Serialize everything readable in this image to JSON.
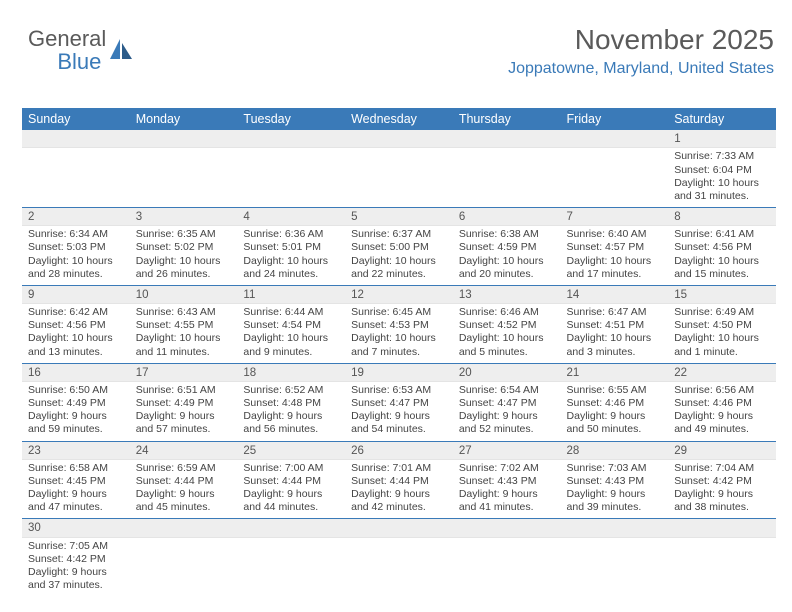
{
  "logo": {
    "word1": "General",
    "word2": "Blue"
  },
  "header": {
    "title": "November 2025",
    "location": "Joppatowne, Maryland, United States"
  },
  "colors": {
    "header_bg": "#3a7ab8",
    "header_text": "#ffffff",
    "daynum_bg": "#eeeeee",
    "row_border": "#3a7ab8",
    "title_color": "#5a5a5a",
    "location_color": "#3a7ab8"
  },
  "day_labels": [
    "Sunday",
    "Monday",
    "Tuesday",
    "Wednesday",
    "Thursday",
    "Friday",
    "Saturday"
  ],
  "weeks": [
    [
      null,
      null,
      null,
      null,
      null,
      null,
      {
        "n": "1",
        "sr": "7:33 AM",
        "ss": "6:04 PM",
        "dl": "10 hours and 31 minutes."
      }
    ],
    [
      {
        "n": "2",
        "sr": "6:34 AM",
        "ss": "5:03 PM",
        "dl": "10 hours and 28 minutes."
      },
      {
        "n": "3",
        "sr": "6:35 AM",
        "ss": "5:02 PM",
        "dl": "10 hours and 26 minutes."
      },
      {
        "n": "4",
        "sr": "6:36 AM",
        "ss": "5:01 PM",
        "dl": "10 hours and 24 minutes."
      },
      {
        "n": "5",
        "sr": "6:37 AM",
        "ss": "5:00 PM",
        "dl": "10 hours and 22 minutes."
      },
      {
        "n": "6",
        "sr": "6:38 AM",
        "ss": "4:59 PM",
        "dl": "10 hours and 20 minutes."
      },
      {
        "n": "7",
        "sr": "6:40 AM",
        "ss": "4:57 PM",
        "dl": "10 hours and 17 minutes."
      },
      {
        "n": "8",
        "sr": "6:41 AM",
        "ss": "4:56 PM",
        "dl": "10 hours and 15 minutes."
      }
    ],
    [
      {
        "n": "9",
        "sr": "6:42 AM",
        "ss": "4:56 PM",
        "dl": "10 hours and 13 minutes."
      },
      {
        "n": "10",
        "sr": "6:43 AM",
        "ss": "4:55 PM",
        "dl": "10 hours and 11 minutes."
      },
      {
        "n": "11",
        "sr": "6:44 AM",
        "ss": "4:54 PM",
        "dl": "10 hours and 9 minutes."
      },
      {
        "n": "12",
        "sr": "6:45 AM",
        "ss": "4:53 PM",
        "dl": "10 hours and 7 minutes."
      },
      {
        "n": "13",
        "sr": "6:46 AM",
        "ss": "4:52 PM",
        "dl": "10 hours and 5 minutes."
      },
      {
        "n": "14",
        "sr": "6:47 AM",
        "ss": "4:51 PM",
        "dl": "10 hours and 3 minutes."
      },
      {
        "n": "15",
        "sr": "6:49 AM",
        "ss": "4:50 PM",
        "dl": "10 hours and 1 minute."
      }
    ],
    [
      {
        "n": "16",
        "sr": "6:50 AM",
        "ss": "4:49 PM",
        "dl": "9 hours and 59 minutes."
      },
      {
        "n": "17",
        "sr": "6:51 AM",
        "ss": "4:49 PM",
        "dl": "9 hours and 57 minutes."
      },
      {
        "n": "18",
        "sr": "6:52 AM",
        "ss": "4:48 PM",
        "dl": "9 hours and 56 minutes."
      },
      {
        "n": "19",
        "sr": "6:53 AM",
        "ss": "4:47 PM",
        "dl": "9 hours and 54 minutes."
      },
      {
        "n": "20",
        "sr": "6:54 AM",
        "ss": "4:47 PM",
        "dl": "9 hours and 52 minutes."
      },
      {
        "n": "21",
        "sr": "6:55 AM",
        "ss": "4:46 PM",
        "dl": "9 hours and 50 minutes."
      },
      {
        "n": "22",
        "sr": "6:56 AM",
        "ss": "4:46 PM",
        "dl": "9 hours and 49 minutes."
      }
    ],
    [
      {
        "n": "23",
        "sr": "6:58 AM",
        "ss": "4:45 PM",
        "dl": "9 hours and 47 minutes."
      },
      {
        "n": "24",
        "sr": "6:59 AM",
        "ss": "4:44 PM",
        "dl": "9 hours and 45 minutes."
      },
      {
        "n": "25",
        "sr": "7:00 AM",
        "ss": "4:44 PM",
        "dl": "9 hours and 44 minutes."
      },
      {
        "n": "26",
        "sr": "7:01 AM",
        "ss": "4:44 PM",
        "dl": "9 hours and 42 minutes."
      },
      {
        "n": "27",
        "sr": "7:02 AM",
        "ss": "4:43 PM",
        "dl": "9 hours and 41 minutes."
      },
      {
        "n": "28",
        "sr": "7:03 AM",
        "ss": "4:43 PM",
        "dl": "9 hours and 39 minutes."
      },
      {
        "n": "29",
        "sr": "7:04 AM",
        "ss": "4:42 PM",
        "dl": "9 hours and 38 minutes."
      }
    ],
    [
      {
        "n": "30",
        "sr": "7:05 AM",
        "ss": "4:42 PM",
        "dl": "9 hours and 37 minutes."
      },
      null,
      null,
      null,
      null,
      null,
      null
    ]
  ],
  "labels": {
    "sunrise": "Sunrise: ",
    "sunset": "Sunset: ",
    "daylight": "Daylight: "
  }
}
